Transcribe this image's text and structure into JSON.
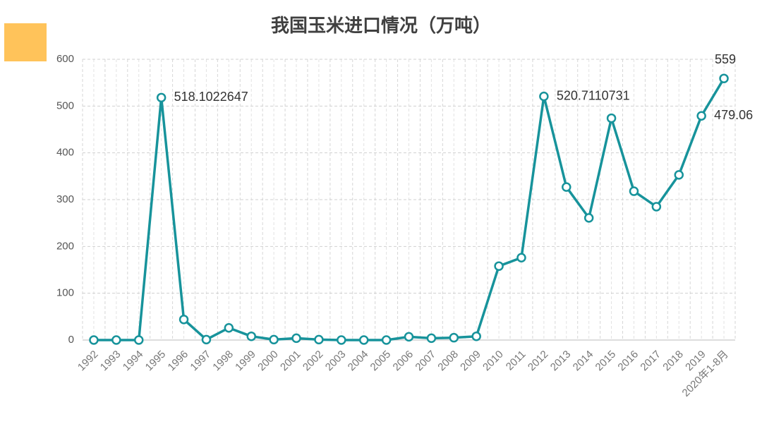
{
  "chart_data": {
    "type": "line",
    "title": "我国玉米进口情况（万吨）",
    "categories": [
      "1992",
      "1993",
      "1994",
      "1995",
      "1996",
      "1997",
      "1998",
      "1999",
      "2000",
      "2001",
      "2002",
      "2003",
      "2004",
      "2005",
      "2006",
      "2007",
      "2008",
      "2009",
      "2010",
      "2011",
      "2012",
      "2013",
      "2014",
      "2015",
      "2016",
      "2017",
      "2018",
      "2019",
      "2020年1-8月"
    ],
    "series": [
      {
        "name": "玉米进口",
        "color": "#17939b",
        "values": [
          0,
          0,
          0,
          518.1022647,
          44,
          1,
          26,
          8,
          1,
          4,
          1,
          0,
          0,
          0,
          7,
          4,
          5,
          8,
          158,
          176,
          520.7110731,
          327,
          261,
          474,
          318,
          285,
          353,
          479.06,
          559
        ],
        "value_labels": [
          null,
          null,
          null,
          "518.1022647",
          null,
          null,
          null,
          null,
          null,
          null,
          null,
          null,
          null,
          null,
          null,
          null,
          null,
          null,
          null,
          null,
          "520.7110731",
          null,
          null,
          null,
          null,
          null,
          null,
          "479.06",
          "559"
        ]
      }
    ],
    "ylim": [
      0,
      600
    ],
    "yticks": [
      0,
      100,
      200,
      300,
      400,
      500,
      600
    ],
    "grid": true
  }
}
